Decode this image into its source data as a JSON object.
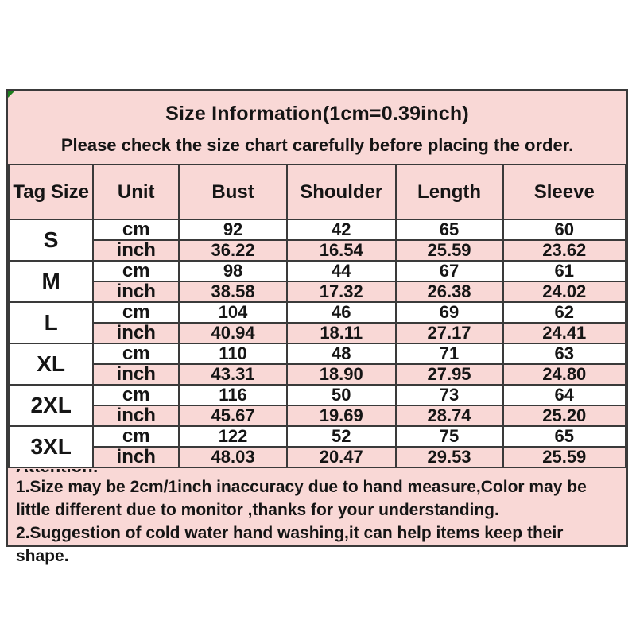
{
  "colors": {
    "pink": "#f9d8d6",
    "row_white": "#ffffff",
    "border": "#3a3a3a",
    "text": "#151515",
    "corner_flag": "#1e7e1e",
    "page_background": "#ffffff"
  },
  "header": {
    "title": "Size Information(1cm=0.39inch)",
    "subtitle": "Please check the size chart carefully before placing the order."
  },
  "table": {
    "headers": [
      "Tag Size",
      "Unit",
      "Bust",
      "Shoulder",
      "Length",
      "Sleeve"
    ],
    "unit_labels": [
      "cm",
      "inch"
    ],
    "rows": [
      {
        "size": "S",
        "cm": [
          "92",
          "42",
          "65",
          "60"
        ],
        "inch": [
          "36.22",
          "16.54",
          "25.59",
          "23.62"
        ]
      },
      {
        "size": "M",
        "cm": [
          "98",
          "44",
          "67",
          "61"
        ],
        "inch": [
          "38.58",
          "17.32",
          "26.38",
          "24.02"
        ]
      },
      {
        "size": "L",
        "cm": [
          "104",
          "46",
          "69",
          "62"
        ],
        "inch": [
          "40.94",
          "18.11",
          "27.17",
          "24.41"
        ]
      },
      {
        "size": "XL",
        "cm": [
          "110",
          "48",
          "71",
          "63"
        ],
        "inch": [
          "43.31",
          "18.90",
          "27.95",
          "24.80"
        ]
      },
      {
        "size": "2XL",
        "cm": [
          "116",
          "50",
          "73",
          "64"
        ],
        "inch": [
          "45.67",
          "19.69",
          "28.74",
          "25.20"
        ]
      },
      {
        "size": "3XL",
        "cm": [
          "122",
          "52",
          "75",
          "65"
        ],
        "inch": [
          "48.03",
          "20.47",
          "29.53",
          "25.59"
        ]
      }
    ]
  },
  "attention": {
    "label": "Attention:",
    "lines": [
      "1.Size may be 2cm/1inch inaccuracy due to hand measure,Color may be",
      "little different due to monitor ,thanks for your understanding.",
      "2.Suggestion of cold water hand washing,it can help items keep their",
      "shape."
    ]
  }
}
